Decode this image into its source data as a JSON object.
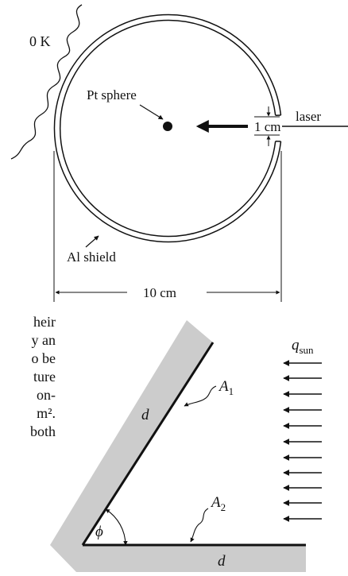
{
  "figure_top": {
    "labels": {
      "temp": "0 K",
      "sphere": "Pt sphere",
      "aperture": "1 cm",
      "beam": "laser",
      "shield": "Al shield",
      "diameter": "10 cm"
    }
  },
  "text_fragments": [
    "heir",
    "y an",
    "o be",
    "ture",
    "on-",
    "m²."
  ],
  "text_fragment_last": "both",
  "figure_bottom": {
    "labels": {
      "flux": "q",
      "flux_sub": "sun",
      "plate1": "A",
      "plate1_sub": "1",
      "plate2": "A",
      "plate2_sub": "2",
      "len1": "d",
      "len2": "d",
      "angle": "ϕ"
    }
  }
}
